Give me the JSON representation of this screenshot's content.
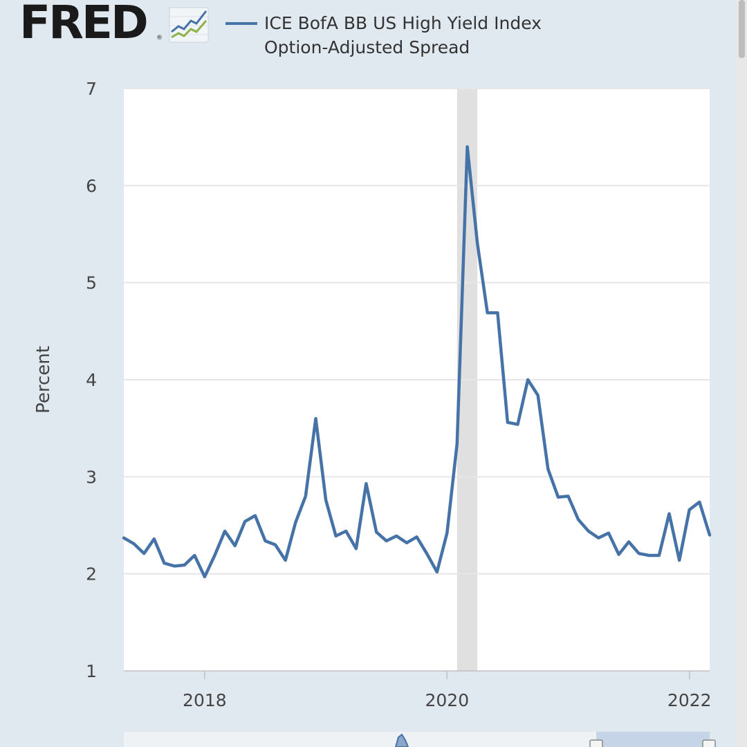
{
  "header": {
    "logo_text": "FRED",
    "logo_reg": "®"
  },
  "colors": {
    "series": "#4572a7",
    "recession": "#e0e0e0",
    "background": "#e1e9f0",
    "plot": "#ffffff"
  },
  "chart_data": {
    "type": "line",
    "ylabel": "Percent",
    "ylim": [
      1,
      7
    ],
    "yticks": [
      1,
      2,
      3,
      4,
      5,
      6,
      7
    ],
    "xlim": [
      2017.333,
      2022.167
    ],
    "xticks": [
      {
        "value": 2018,
        "label": "2018"
      },
      {
        "value": 2020,
        "label": "2020"
      },
      {
        "value": 2022,
        "label": "2022"
      }
    ],
    "grid": true,
    "legend": "top",
    "recessions": [
      [
        2020.083,
        2020.25
      ]
    ],
    "series": [
      {
        "name": "ICE BofA BB US High Yield Index Option-Adjusted Spread",
        "points": [
          [
            2017.333,
            2.37
          ],
          [
            2017.417,
            2.31
          ],
          [
            2017.5,
            2.21
          ],
          [
            2017.583,
            2.36
          ],
          [
            2017.667,
            2.11
          ],
          [
            2017.75,
            2.08
          ],
          [
            2017.833,
            2.09
          ],
          [
            2017.917,
            2.19
          ],
          [
            2018.0,
            1.97
          ],
          [
            2018.083,
            2.19
          ],
          [
            2018.167,
            2.44
          ],
          [
            2018.25,
            2.29
          ],
          [
            2018.333,
            2.54
          ],
          [
            2018.417,
            2.6
          ],
          [
            2018.5,
            2.34
          ],
          [
            2018.583,
            2.3
          ],
          [
            2018.667,
            2.14
          ],
          [
            2018.75,
            2.53
          ],
          [
            2018.833,
            2.8
          ],
          [
            2018.917,
            3.6
          ],
          [
            2019.0,
            2.76
          ],
          [
            2019.083,
            2.39
          ],
          [
            2019.167,
            2.44
          ],
          [
            2019.25,
            2.26
          ],
          [
            2019.333,
            2.93
          ],
          [
            2019.417,
            2.43
          ],
          [
            2019.5,
            2.34
          ],
          [
            2019.583,
            2.39
          ],
          [
            2019.667,
            2.32
          ],
          [
            2019.75,
            2.38
          ],
          [
            2019.833,
            2.21
          ],
          [
            2019.917,
            2.02
          ],
          [
            2020.0,
            2.42
          ],
          [
            2020.083,
            3.34
          ],
          [
            2020.167,
            6.4
          ],
          [
            2020.25,
            5.41
          ],
          [
            2020.333,
            4.69
          ],
          [
            2020.417,
            4.69
          ],
          [
            2020.5,
            3.56
          ],
          [
            2020.583,
            3.54
          ],
          [
            2020.667,
            4.0
          ],
          [
            2020.75,
            3.84
          ],
          [
            2020.833,
            3.08
          ],
          [
            2020.917,
            2.79
          ],
          [
            2021.0,
            2.8
          ],
          [
            2021.083,
            2.56
          ],
          [
            2021.167,
            2.44
          ],
          [
            2021.25,
            2.37
          ],
          [
            2021.333,
            2.42
          ],
          [
            2021.417,
            2.2
          ],
          [
            2021.5,
            2.33
          ],
          [
            2021.583,
            2.21
          ],
          [
            2021.667,
            2.19
          ],
          [
            2021.75,
            2.19
          ],
          [
            2021.833,
            2.62
          ],
          [
            2021.917,
            2.14
          ],
          [
            2022.0,
            2.66
          ],
          [
            2022.083,
            2.74
          ],
          [
            2022.167,
            2.4
          ]
        ]
      }
    ]
  }
}
